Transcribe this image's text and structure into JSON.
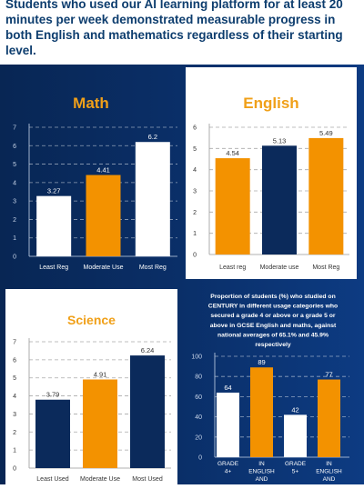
{
  "headline": "Students who used our AI learning platform for at least 20 minutes per week demonstrated measurable progress in both English and mathematics regardless of their starting level.",
  "colors": {
    "navy": "#0b2a5b",
    "orange": "#f39200",
    "white": "#ffffff",
    "title_orange": "#f0a019",
    "band": "#0a2e66"
  },
  "chart_data": [
    {
      "type": "bar",
      "title": "Math",
      "categories": [
        "Least Reg",
        "Moderate Use",
        "Most Reg"
      ],
      "values": [
        3.27,
        4.41,
        6.2
      ],
      "data_labels": [
        "3.27",
        "4.41",
        "6.2"
      ],
      "bar_colors": [
        "#ffffff",
        "#f39200",
        "#ffffff"
      ],
      "ylim": [
        0,
        7
      ],
      "yticks": [
        "0",
        "1",
        "2",
        "3",
        "4",
        "5",
        "6",
        "7"
      ],
      "grid": true,
      "background": "dark"
    },
    {
      "type": "bar",
      "title": "English",
      "categories": [
        "Least reg",
        "Moderate use",
        "Most Reg"
      ],
      "values": [
        4.54,
        5.13,
        5.49
      ],
      "data_labels": [
        "4.54",
        "5.13",
        "5.49"
      ],
      "bar_colors": [
        "#f39200",
        "#0b2a5b",
        "#f39200"
      ],
      "ylim": [
        0,
        6
      ],
      "yticks": [
        "0",
        "1",
        "2",
        "3",
        "4",
        "5",
        "6"
      ],
      "grid": true,
      "background": "light"
    },
    {
      "type": "bar",
      "title": "Science",
      "categories": [
        "Least Used",
        "Moderate Use",
        "Most Used"
      ],
      "values": [
        3.79,
        4.91,
        6.24
      ],
      "data_labels": [
        "3.79",
        "4.91",
        "6.24"
      ],
      "bar_colors": [
        "#0b2a5b",
        "#f39200",
        "#0b2a5b"
      ],
      "ylim": [
        0,
        7
      ],
      "yticks": [
        "0",
        "1",
        "2",
        "3",
        "4",
        "5",
        "6",
        "7"
      ],
      "grid": true,
      "background": "light"
    },
    {
      "type": "bar",
      "title": "Proportion of students (%) who studied on CENTURY in different usage categories who secured a grade 4 or above or a grade 5 or above in GCSE English and maths, against national averages of 65.1% and 45.9% respectively",
      "categories": [
        [
          "GRADE",
          "4+"
        ],
        [
          "IN",
          "ENGLISH",
          "AND"
        ],
        [
          "GRADE",
          "5+"
        ],
        [
          "IN",
          "ENGLISH",
          "AND"
        ]
      ],
      "values": [
        64,
        89,
        42,
        77
      ],
      "data_labels": [
        "64",
        "89",
        "42",
        "77"
      ],
      "bar_colors": [
        "#ffffff",
        "#f39200",
        "#ffffff",
        "#f39200"
      ],
      "ylim": [
        0,
        100
      ],
      "yticks": [
        "0",
        "20",
        "40",
        "60",
        "80",
        "100"
      ],
      "grid": true,
      "background": "dark"
    }
  ]
}
